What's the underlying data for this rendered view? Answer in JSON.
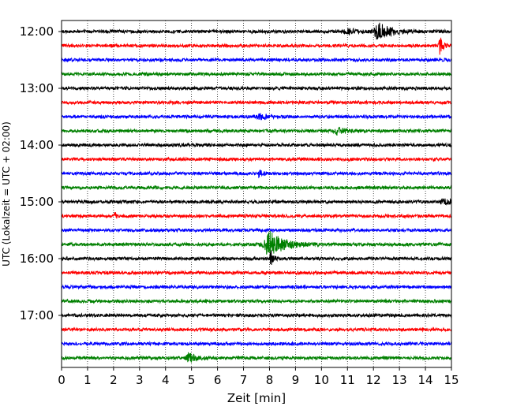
{
  "chart_data": {
    "type": "line",
    "xlabel": "Zeit  [min]",
    "ylabel": "UTC (Lokalzeit = UTC + 02:00)",
    "xlim": [
      0,
      15
    ],
    "x_ticks": [
      "0",
      "1",
      "2",
      "3",
      "4",
      "5",
      "6",
      "7",
      "8",
      "9",
      "10",
      "11",
      "12",
      "13",
      "14",
      "15"
    ],
    "y_ticks": [
      "12:00",
      "13:00",
      "14:00",
      "15:00",
      "16:00",
      "17:00"
    ],
    "grid": "vertical dotted lines at each minute",
    "trace_interval_min": 15,
    "first_trace": "12:00",
    "trace_count": 24,
    "trace_colors": [
      "#000000",
      "#ff0000",
      "#0000ff",
      "#008000"
    ],
    "events": [
      {
        "trace": 0,
        "minute": 12.2,
        "amplitude": 10,
        "spread": 0.5
      },
      {
        "trace": 0,
        "minute": 11.0,
        "amplitude": 4,
        "spread": 0.3
      },
      {
        "trace": 1,
        "minute": 14.55,
        "amplitude": 12,
        "spread": 0.12
      },
      {
        "trace": 6,
        "minute": 7.6,
        "amplitude": 3,
        "spread": 0.3
      },
      {
        "trace": 7,
        "minute": 10.6,
        "amplitude": 5,
        "spread": 0.3
      },
      {
        "trace": 10,
        "minute": 7.6,
        "amplitude": 4,
        "spread": 0.15
      },
      {
        "trace": 12,
        "minute": 14.7,
        "amplitude": 3,
        "spread": 0.3
      },
      {
        "trace": 13,
        "minute": 2.05,
        "amplitude": 5,
        "spread": 0.05
      },
      {
        "trace": 13,
        "minute": 3.45,
        "amplitude": 4,
        "spread": 0.05
      },
      {
        "trace": 15,
        "minute": 8.0,
        "amplitude": 16,
        "spread": 0.55
      },
      {
        "trace": 16,
        "minute": 8.05,
        "amplitude": 10,
        "spread": 0.1
      },
      {
        "trace": 23,
        "minute": 4.9,
        "amplitude": 6,
        "spread": 0.25
      }
    ]
  }
}
